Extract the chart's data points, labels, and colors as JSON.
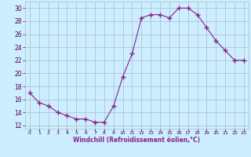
{
  "x": [
    0,
    1,
    2,
    3,
    4,
    5,
    6,
    7,
    8,
    9,
    10,
    11,
    12,
    13,
    14,
    15,
    16,
    17,
    18,
    19,
    20,
    21,
    22,
    23
  ],
  "y": [
    17,
    15.5,
    15,
    14,
    13.5,
    13,
    13,
    12.5,
    12.5,
    15,
    19.5,
    23,
    28.5,
    29,
    29,
    28.5,
    30,
    30,
    29,
    27,
    25,
    23.5,
    22,
    22
  ],
  "line_color": "#882288",
  "marker": "+",
  "marker_size": 4,
  "marker_lw": 1.0,
  "bg_color": "#cceeff",
  "grid_color": "#aabbcc",
  "xlabel": "Windchill (Refroidissement éolien,°C)",
  "xlabel_color": "#882288",
  "ylabel_ticks": [
    12,
    14,
    16,
    18,
    20,
    22,
    24,
    26,
    28,
    30
  ],
  "xtick_labels": [
    "0",
    "1",
    "2",
    "3",
    "4",
    "5",
    "6",
    "7",
    "8",
    "9",
    "10",
    "11",
    "12",
    "13",
    "14",
    "15",
    "16",
    "17",
    "18",
    "19",
    "20",
    "21",
    "22",
    "23"
  ],
  "ylim": [
    11.5,
    31
  ],
  "xlim": [
    -0.5,
    23.5
  ]
}
